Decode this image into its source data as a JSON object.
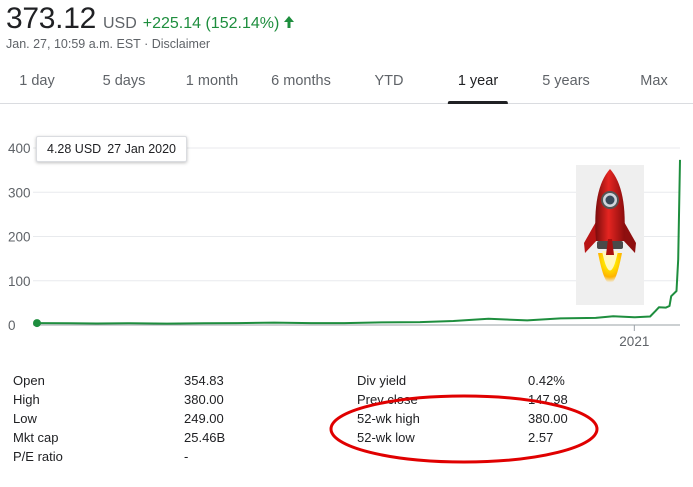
{
  "quote": {
    "price": "373.12",
    "currency": "USD",
    "change": "+225.14 (152.14%)",
    "timestamp": "Jan. 27, 10:59 a.m. EST",
    "separator": "·",
    "disclaimer": "Disclaimer",
    "positive_color": "#1e8e3e",
    "arrow_icon": "arrow-up-icon"
  },
  "tabs": [
    {
      "label": "1 day"
    },
    {
      "label": "5 days"
    },
    {
      "label": "1 month"
    },
    {
      "label": "6 months"
    },
    {
      "label": "YTD"
    },
    {
      "label": "1 year",
      "active": true
    },
    {
      "label": "5 years"
    },
    {
      "label": "Max"
    }
  ],
  "tooltip": {
    "value": "4.28 USD",
    "date": "27 Jan 2020"
  },
  "chart_data": {
    "type": "line",
    "series": [
      {
        "x": [
          "2020-01-27",
          "2020-02-15",
          "2020-03-01",
          "2020-03-20",
          "2020-04-10",
          "2020-05-01",
          "2020-05-20",
          "2020-06-10",
          "2020-07-01",
          "2020-07-20",
          "2020-08-10",
          "2020-09-01",
          "2020-09-20",
          "2020-10-10",
          "2020-11-01",
          "2020-11-20",
          "2020-12-10",
          "2020-12-20",
          "2021-01-01",
          "2021-01-10",
          "2021-01-13",
          "2021-01-15",
          "2021-01-19",
          "2021-01-21",
          "2021-01-22",
          "2021-01-25",
          "2021-01-26",
          "2021-01-27"
        ],
        "values": [
          4.28,
          3.9,
          3.5,
          4.0,
          3.2,
          4.0,
          4.3,
          5.5,
          4.4,
          4.3,
          5.8,
          6.5,
          9.0,
          14.0,
          10.5,
          15.0,
          16.0,
          20.0,
          17.3,
          19.2,
          31.4,
          39.9,
          39.4,
          43.0,
          65.0,
          76.8,
          148.0,
          373.12
        ]
      }
    ],
    "xlabel": "",
    "ylabel": "",
    "x_tick_labels": [
      "2021"
    ],
    "y_ticks": [
      0,
      100,
      200,
      300,
      400
    ],
    "ylim": [
      0,
      400
    ],
    "grid": true,
    "line_color": "#1e8e3e",
    "start_marker_color": "#1e8e3e"
  },
  "stats": {
    "left": [
      {
        "label": "Open",
        "value": "354.83"
      },
      {
        "label": "High",
        "value": "380.00"
      },
      {
        "label": "Low",
        "value": "249.00"
      },
      {
        "label": "Mkt cap",
        "value": "25.46B"
      },
      {
        "label": "P/E ratio",
        "value": "-"
      }
    ],
    "right": [
      {
        "label": "Div yield",
        "value": "0.42%"
      },
      {
        "label": "Prev close",
        "value": "147.98"
      },
      {
        "label": "52-wk high",
        "value": "380.00"
      },
      {
        "label": "52-wk low",
        "value": "2.57"
      }
    ]
  },
  "annotation": {
    "circle_color": "#e00000",
    "rocket_icon": "rocket-icon"
  }
}
